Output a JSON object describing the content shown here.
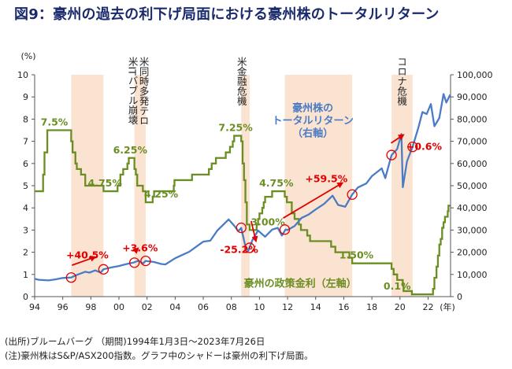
{
  "title": "図9：豪州の過去の利下げ局面における豪州株のトータルリターン",
  "footnotes": {
    "source": "(出所)ブルームバーグ （期間)1994年1月3日～2023年7月26日",
    "note": "(注)豪州株はS&P/ASX200指数。グラフ中のシャドーは豪州の利下げ局面。"
  },
  "chart_data": {
    "type": "line",
    "left_axis_unit": "(%)",
    "x_unit": "(年)",
    "xlim": [
      1994,
      2023.6
    ],
    "ylim_left": [
      0,
      10
    ],
    "ylim_right": [
      0,
      100000
    ],
    "x_ticks": [
      {
        "value": 1994,
        "label": "94"
      },
      {
        "value": 1996,
        "label": "96"
      },
      {
        "value": 1998,
        "label": "98"
      },
      {
        "value": 2000,
        "label": "00"
      },
      {
        "value": 2002,
        "label": "02"
      },
      {
        "value": 2004,
        "label": "04"
      },
      {
        "value": 2006,
        "label": "06"
      },
      {
        "value": 2008,
        "label": "08"
      },
      {
        "value": 2010,
        "label": "10"
      },
      {
        "value": 2012,
        "label": "12"
      },
      {
        "value": 2014,
        "label": "14"
      },
      {
        "value": 2016,
        "label": "16"
      },
      {
        "value": 2018,
        "label": "18"
      },
      {
        "value": 2020,
        "label": "20"
      },
      {
        "value": 2022,
        "label": "22"
      }
    ],
    "left_ticks": [
      0,
      1,
      2,
      3,
      4,
      5,
      6,
      7,
      8,
      9,
      10
    ],
    "right_ticks": [
      {
        "value": 0,
        "label": "0"
      },
      {
        "value": 10000,
        "label": "10,000"
      },
      {
        "value": 20000,
        "label": "20,000"
      },
      {
        "value": 30000,
        "label": "30,000"
      },
      {
        "value": 40000,
        "label": "40,000"
      },
      {
        "value": 50000,
        "label": "50,000"
      },
      {
        "value": 60000,
        "label": "60,000"
      },
      {
        "value": 70000,
        "label": "70,000"
      },
      {
        "value": 80000,
        "label": "80,000"
      },
      {
        "value": 90000,
        "label": "90,000"
      },
      {
        "value": 100000,
        "label": "100,000"
      }
    ],
    "shaded_periods": [
      [
        1996.6,
        1998.9
      ],
      [
        2001.1,
        2001.9
      ],
      [
        2008.7,
        2009.3
      ],
      [
        2011.8,
        2016.6
      ],
      [
        2019.4,
        2020.9
      ]
    ],
    "colors": {
      "policy_rate": "#6b8e23",
      "stock": "#4a7cc4",
      "shade": "#fbe3d1",
      "annotation": "#e00000"
    },
    "series": [
      {
        "name": "豪州の政策金利（左軸）",
        "axis": "left",
        "step": true,
        "points": [
          [
            1994.0,
            4.75
          ],
          [
            1994.6,
            5.5
          ],
          [
            1994.7,
            6.5
          ],
          [
            1994.9,
            7.5
          ],
          [
            1996.6,
            7.0
          ],
          [
            1996.7,
            6.5
          ],
          [
            1996.9,
            6.0
          ],
          [
            1997.0,
            5.75
          ],
          [
            1997.3,
            5.5
          ],
          [
            1997.6,
            5.0
          ],
          [
            1998.9,
            4.75
          ],
          [
            1999.9,
            5.0
          ],
          [
            2000.1,
            5.5
          ],
          [
            2000.3,
            5.75
          ],
          [
            2000.6,
            6.0
          ],
          [
            2000.7,
            6.25
          ],
          [
            2001.1,
            5.75
          ],
          [
            2001.2,
            5.5
          ],
          [
            2001.3,
            5.0
          ],
          [
            2001.7,
            4.75
          ],
          [
            2001.9,
            4.25
          ],
          [
            2002.4,
            4.5
          ],
          [
            2002.5,
            4.75
          ],
          [
            2003.9,
            5.0
          ],
          [
            2003.95,
            5.25
          ],
          [
            2005.2,
            5.5
          ],
          [
            2006.4,
            5.75
          ],
          [
            2006.6,
            6.0
          ],
          [
            2006.9,
            6.25
          ],
          [
            2007.6,
            6.5
          ],
          [
            2007.9,
            6.75
          ],
          [
            2008.1,
            7.0
          ],
          [
            2008.2,
            7.25
          ],
          [
            2008.7,
            7.0
          ],
          [
            2008.8,
            6.0
          ],
          [
            2008.9,
            5.25
          ],
          [
            2009.0,
            4.25
          ],
          [
            2009.1,
            3.25
          ],
          [
            2009.3,
            3.0
          ],
          [
            2009.8,
            3.25
          ],
          [
            2009.9,
            3.5
          ],
          [
            2010.0,
            3.75
          ],
          [
            2010.2,
            4.0
          ],
          [
            2010.3,
            4.25
          ],
          [
            2010.4,
            4.5
          ],
          [
            2010.9,
            4.75
          ],
          [
            2011.8,
            4.5
          ],
          [
            2011.95,
            4.25
          ],
          [
            2012.3,
            3.75
          ],
          [
            2012.5,
            3.5
          ],
          [
            2012.8,
            3.25
          ],
          [
            2012.95,
            3.0
          ],
          [
            2013.4,
            2.75
          ],
          [
            2013.6,
            2.5
          ],
          [
            2015.1,
            2.25
          ],
          [
            2015.4,
            2.0
          ],
          [
            2016.4,
            1.75
          ],
          [
            2016.6,
            1.5
          ],
          [
            2019.4,
            1.25
          ],
          [
            2019.55,
            1.0
          ],
          [
            2019.8,
            0.75
          ],
          [
            2020.2,
            0.5
          ],
          [
            2020.25,
            0.25
          ],
          [
            2020.85,
            0.1
          ],
          [
            2022.35,
            0.35
          ],
          [
            2022.45,
            0.85
          ],
          [
            2022.6,
            1.35
          ],
          [
            2022.7,
            1.85
          ],
          [
            2022.8,
            2.35
          ],
          [
            2022.9,
            2.6
          ],
          [
            2023.0,
            3.1
          ],
          [
            2023.1,
            3.35
          ],
          [
            2023.2,
            3.6
          ],
          [
            2023.4,
            3.85
          ],
          [
            2023.45,
            4.1
          ],
          [
            2023.57,
            4.1
          ]
        ]
      },
      {
        "name": "豪州株のトータルリターン（右軸）",
        "axis": "right",
        "points": [
          [
            1994.0,
            8000
          ],
          [
            1994.3,
            7600
          ],
          [
            1995.0,
            7300
          ],
          [
            1995.5,
            7800
          ],
          [
            1996.0,
            8400
          ],
          [
            1996.6,
            8600
          ],
          [
            1997.0,
            9800
          ],
          [
            1997.6,
            11200
          ],
          [
            1997.9,
            10800
          ],
          [
            1998.3,
            11800
          ],
          [
            1998.7,
            10900
          ],
          [
            1998.9,
            12300
          ],
          [
            1999.5,
            13200
          ],
          [
            2000.0,
            13800
          ],
          [
            2000.5,
            14600
          ],
          [
            2001.0,
            15300
          ],
          [
            2001.4,
            16200
          ],
          [
            2001.7,
            14900
          ],
          [
            2001.9,
            16100
          ],
          [
            2002.5,
            15600
          ],
          [
            2003.0,
            14700
          ],
          [
            2003.3,
            14500
          ],
          [
            2004.0,
            17300
          ],
          [
            2005.0,
            20200
          ],
          [
            2006.0,
            24800
          ],
          [
            2006.5,
            25200
          ],
          [
            2007.0,
            29800
          ],
          [
            2007.8,
            34800
          ],
          [
            2008.2,
            32000
          ],
          [
            2008.5,
            29500
          ],
          [
            2008.7,
            31000
          ],
          [
            2009.0,
            22600
          ],
          [
            2009.2,
            20600
          ],
          [
            2009.5,
            25500
          ],
          [
            2009.9,
            29800
          ],
          [
            2010.4,
            27000
          ],
          [
            2010.9,
            30200
          ],
          [
            2011.3,
            31000
          ],
          [
            2011.6,
            27500
          ],
          [
            2011.85,
            30200
          ],
          [
            2012.0,
            30000
          ],
          [
            2012.5,
            31800
          ],
          [
            2013.0,
            35500
          ],
          [
            2013.5,
            37000
          ],
          [
            2014.0,
            39300
          ],
          [
            2014.6,
            41800
          ],
          [
            2015.2,
            45500
          ],
          [
            2015.6,
            41300
          ],
          [
            2016.1,
            40500
          ],
          [
            2016.6,
            46000
          ],
          [
            2017.0,
            49200
          ],
          [
            2017.6,
            51000
          ],
          [
            2018.0,
            54300
          ],
          [
            2018.7,
            57800
          ],
          [
            2018.95,
            53400
          ],
          [
            2019.4,
            63800
          ],
          [
            2019.8,
            66500
          ],
          [
            2020.1,
            73300
          ],
          [
            2020.2,
            49300
          ],
          [
            2020.5,
            61000
          ],
          [
            2020.9,
            67500
          ],
          [
            2021.3,
            76000
          ],
          [
            2021.6,
            83200
          ],
          [
            2021.9,
            82300
          ],
          [
            2022.2,
            86800
          ],
          [
            2022.45,
            76800
          ],
          [
            2022.8,
            80500
          ],
          [
            2023.1,
            91300
          ],
          [
            2023.3,
            87500
          ],
          [
            2023.57,
            91000
          ]
        ]
      }
    ],
    "annotations": {
      "events": [
        {
          "x": 2001.35,
          "lines": [
            "米同時多発テロ",
            "米ITバブル崩壊"
          ]
        },
        {
          "x": 2008.7,
          "lines": [
            "米金融危機"
          ]
        },
        {
          "x": 2020.1,
          "lines": [
            "コロナ危機"
          ]
        }
      ],
      "rate_labels": [
        {
          "x": 1995.4,
          "y": 7.5,
          "text": "7.5%"
        },
        {
          "x": 2000.8,
          "y": 6.25,
          "text": "6.25%"
        },
        {
          "x": 1999.0,
          "y": 4.75,
          "text": "4.75%"
        },
        {
          "x": 2003.0,
          "y": 4.25,
          "text": "4.25%"
        },
        {
          "x": 2008.3,
          "y": 7.25,
          "text": "7.25%"
        },
        {
          "x": 2011.2,
          "y": 4.75,
          "text": "4.75%"
        },
        {
          "x": 2010.6,
          "y": 3.0,
          "text": "3.00%"
        },
        {
          "x": 2016.9,
          "y": 1.5,
          "text": "1.50%"
        },
        {
          "x": 2019.8,
          "y": 0.1,
          "text": "0.1%"
        }
      ],
      "returns": [
        {
          "from": [
            1996.6,
            8600
          ],
          "to": [
            1998.9,
            12300
          ],
          "text": "+40.5%"
        },
        {
          "from": [
            2001.1,
            15300
          ],
          "to": [
            2001.9,
            16100
          ],
          "text": "+3.6%"
        },
        {
          "from": [
            2008.7,
            31000
          ],
          "to": [
            2009.3,
            22000
          ],
          "text": "-25.2%"
        },
        {
          "from": [
            2011.8,
            30200
          ],
          "to": [
            2016.6,
            46000
          ],
          "text": "+59.5%"
        },
        {
          "from": [
            2019.4,
            63800
          ],
          "to": [
            2020.9,
            67500
          ],
          "text": "+0.6%"
        }
      ],
      "series_labels": [
        {
          "lines": [
            "豪州株の",
            "トータルリターン",
            "（右軸）"
          ]
        },
        {
          "lines": [
            "豪州の政策金利（左軸）"
          ]
        }
      ]
    }
  }
}
